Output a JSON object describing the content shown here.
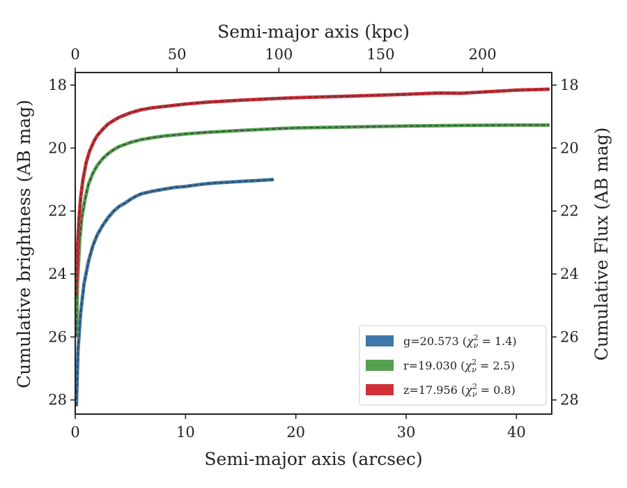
{
  "chart_data": {
    "type": "line",
    "xlabel": "Semi-major axis (arcsec)",
    "ylabel": "Cumulative brightness (AB mag)",
    "top_xlabel": "Semi-major axis (kpc)",
    "right_ylabel": "Cumulative Flux (AB mag)",
    "xlim": [
      0,
      43.2
    ],
    "ylim": [
      28.45,
      17.6
    ],
    "y_inverted": true,
    "top_xlim": [
      0,
      234
    ],
    "x_ticks": [
      0,
      10,
      20,
      30,
      40
    ],
    "top_x_ticks": [
      0,
      50,
      100,
      150,
      200
    ],
    "y_ticks": [
      18,
      20,
      22,
      24,
      26,
      28
    ],
    "grid": false,
    "legend_position": "lower-right",
    "series": [
      {
        "name": "g=20.573 ($\\chi^2_\\nu=1.4$)",
        "legend": {
          "prefix": "g=20.573 (",
          "chi": "χ",
          "sub": "ν",
          "sup": "2",
          "suffix": " = 1.4)"
        },
        "color": "#3f78a8",
        "x": [
          0.1,
          0.25,
          0.5,
          0.8,
          1.2,
          1.6,
          2.0,
          2.5,
          3.0,
          3.5,
          4.0,
          4.5,
          5.0,
          5.5,
          6.0,
          7.0,
          8.0,
          9.0,
          10.0,
          11.0,
          12.0,
          13.0,
          14.0,
          15.0,
          16.0,
          17.0,
          18.0
        ],
        "y": [
          28.2,
          26.4,
          25.2,
          24.3,
          23.6,
          23.1,
          22.75,
          22.45,
          22.2,
          22.0,
          21.85,
          21.75,
          21.63,
          21.53,
          21.45,
          21.37,
          21.31,
          21.25,
          21.22,
          21.17,
          21.13,
          21.1,
          21.08,
          21.06,
          21.04,
          21.02,
          21.0
        ]
      },
      {
        "name": "r=19.030 ($\\chi^2_\\nu=2.5$)",
        "legend": {
          "prefix": "r=19.030 (",
          "chi": "χ",
          "sub": "ν",
          "sup": "2",
          "suffix": " = 2.5)"
        },
        "color": "#55a151",
        "x": [
          0.1,
          0.2,
          0.4,
          0.6,
          0.9,
          1.2,
          1.6,
          2.0,
          2.5,
          3.0,
          3.5,
          4.0,
          5.0,
          6.0,
          7.0,
          8.0,
          10.0,
          12.0,
          15.0,
          18.0,
          20.0,
          25.0,
          30.0,
          35.0,
          40.0,
          43.0
        ],
        "y": [
          26.0,
          24.3,
          22.95,
          22.2,
          21.6,
          21.15,
          20.8,
          20.55,
          20.33,
          20.17,
          20.05,
          19.95,
          19.82,
          19.73,
          19.67,
          19.62,
          19.55,
          19.5,
          19.44,
          19.39,
          19.36,
          19.33,
          19.3,
          19.28,
          19.27,
          19.27
        ]
      },
      {
        "name": "z=17.956 ($\\chi^2_\\nu=0.8$)",
        "legend": {
          "prefix": "z=17.956 (",
          "chi": "χ",
          "sub": "ν",
          "sup": "2",
          "suffix": " = 0.8)"
        },
        "color": "#d0303a",
        "x": [
          0.1,
          0.2,
          0.35,
          0.5,
          0.7,
          1.0,
          1.3,
          1.7,
          2.0,
          2.5,
          3.0,
          3.5,
          4.0,
          5.0,
          6.0,
          7.0,
          8.0,
          10.0,
          12.0,
          15.0,
          18.0,
          20.0,
          25.0,
          30.0,
          33.0,
          35.0,
          40.0,
          43.0
        ],
        "y": [
          24.7,
          23.2,
          22.2,
          21.55,
          21.0,
          20.45,
          20.1,
          19.78,
          19.6,
          19.4,
          19.23,
          19.12,
          19.02,
          18.88,
          18.78,
          18.72,
          18.68,
          18.6,
          18.54,
          18.48,
          18.43,
          18.4,
          18.35,
          18.29,
          18.25,
          18.26,
          18.16,
          18.13
        ]
      }
    ]
  }
}
